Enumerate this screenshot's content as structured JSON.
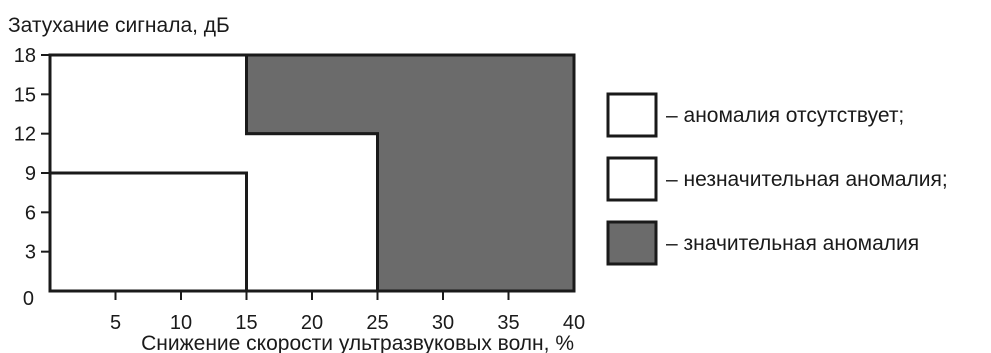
{
  "chart_data": {
    "type": "area",
    "ylabel": "Затухание сигнала, дБ",
    "xlabel": "Снижение скорости ультразвуковых волн, %",
    "xlim": [
      0,
      40
    ],
    "ylim": [
      0,
      18
    ],
    "x_ticks": [
      "5",
      "10",
      "15",
      "20",
      "25",
      "30",
      "35",
      "40"
    ],
    "y_ticks": [
      "0",
      "3",
      "6",
      "9",
      "12",
      "15",
      "18"
    ],
    "grid": false,
    "legend_position": "right",
    "regions": [
      {
        "legend": "– аномалия отсутствует;",
        "fill": "#ffffff",
        "points": [
          [
            0,
            0
          ],
          [
            15,
            0
          ],
          [
            15,
            9
          ],
          [
            0,
            9
          ]
        ]
      },
      {
        "legend": "– незначительная аномалия;",
        "fill": "#ffffff",
        "points": [
          [
            0,
            9
          ],
          [
            15,
            9
          ],
          [
            15,
            0
          ],
          [
            25,
            0
          ],
          [
            25,
            12
          ],
          [
            15,
            12
          ],
          [
            15,
            18
          ],
          [
            0,
            18
          ]
        ]
      },
      {
        "legend": "– значительная аномалия",
        "fill": "#6b6b6b",
        "points": [
          [
            15,
            18
          ],
          [
            40,
            18
          ],
          [
            40,
            0
          ],
          [
            25,
            0
          ],
          [
            25,
            12
          ],
          [
            15,
            12
          ]
        ]
      }
    ]
  }
}
